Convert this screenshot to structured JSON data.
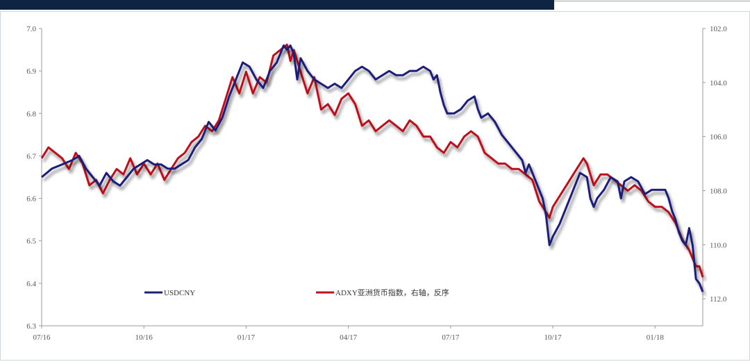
{
  "chart_data": {
    "type": "line",
    "title": "",
    "left_axis": {
      "ylim": [
        6.3,
        7.0
      ],
      "ticks": [
        "7.0",
        "6.9",
        "6.8",
        "6.7",
        "6.6",
        "6.5",
        "6.4",
        "6.3"
      ]
    },
    "right_axis": {
      "ylim": [
        102.0,
        113.0
      ],
      "reversed": true,
      "ticks": [
        "102.0",
        "104.0",
        "106.0",
        "108.0",
        "110.0",
        "112.0"
      ]
    },
    "x_ticks": [
      "07/16",
      "10/16",
      "01/17",
      "04/17",
      "07/17",
      "10/17",
      "01/18"
    ],
    "legend_placement": "bottom-left",
    "series": [
      {
        "name": "USDCNY",
        "axis": "left",
        "color": "#1f1f7a",
        "points": [
          [
            0,
            6.65
          ],
          [
            3,
            6.67
          ],
          [
            6,
            6.68
          ],
          [
            9,
            6.69
          ],
          [
            11,
            6.7
          ],
          [
            13,
            6.67
          ],
          [
            15,
            6.65
          ],
          [
            17,
            6.63
          ],
          [
            19,
            6.66
          ],
          [
            21,
            6.64
          ],
          [
            23,
            6.63
          ],
          [
            25,
            6.65
          ],
          [
            27,
            6.67
          ],
          [
            29,
            6.68
          ],
          [
            31,
            6.69
          ],
          [
            33,
            6.68
          ],
          [
            35,
            6.68
          ],
          [
            37,
            6.67
          ],
          [
            39,
            6.67
          ],
          [
            41,
            6.68
          ],
          [
            43,
            6.69
          ],
          [
            45,
            6.72
          ],
          [
            47,
            6.74
          ],
          [
            49,
            6.78
          ],
          [
            51,
            6.76
          ],
          [
            53,
            6.79
          ],
          [
            55,
            6.84
          ],
          [
            57,
            6.88
          ],
          [
            59,
            6.92
          ],
          [
            61,
            6.91
          ],
          [
            63,
            6.88
          ],
          [
            65,
            6.86
          ],
          [
            67,
            6.9
          ],
          [
            69,
            6.92
          ],
          [
            71,
            6.96
          ],
          [
            72,
            6.95
          ],
          [
            73,
            6.96
          ],
          [
            74,
            6.94
          ],
          [
            75,
            6.88
          ],
          [
            76,
            6.93
          ],
          [
            78,
            6.9
          ],
          [
            80,
            6.88
          ],
          [
            82,
            6.87
          ],
          [
            84,
            6.86
          ],
          [
            86,
            6.87
          ],
          [
            88,
            6.86
          ],
          [
            90,
            6.88
          ],
          [
            92,
            6.9
          ],
          [
            94,
            6.91
          ],
          [
            96,
            6.9
          ],
          [
            98,
            6.88
          ],
          [
            100,
            6.89
          ],
          [
            102,
            6.9
          ],
          [
            104,
            6.89
          ],
          [
            106,
            6.89
          ],
          [
            108,
            6.9
          ],
          [
            110,
            6.9
          ],
          [
            112,
            6.91
          ],
          [
            114,
            6.9
          ],
          [
            115,
            6.88
          ],
          [
            116,
            6.89
          ],
          [
            117,
            6.85
          ],
          [
            118,
            6.82
          ],
          [
            119,
            6.8
          ],
          [
            121,
            6.8
          ],
          [
            123,
            6.81
          ],
          [
            125,
            6.83
          ],
          [
            127,
            6.84
          ],
          [
            128,
            6.81
          ],
          [
            129,
            6.79
          ],
          [
            131,
            6.8
          ],
          [
            133,
            6.78
          ],
          [
            135,
            6.75
          ],
          [
            137,
            6.73
          ],
          [
            139,
            6.71
          ],
          [
            141,
            6.69
          ],
          [
            142,
            6.66
          ],
          [
            143,
            6.68
          ],
          [
            145,
            6.64
          ],
          [
            147,
            6.6
          ],
          [
            148,
            6.56
          ],
          [
            149,
            6.49
          ],
          [
            150,
            6.51
          ],
          [
            152,
            6.54
          ],
          [
            154,
            6.58
          ],
          [
            156,
            6.62
          ],
          [
            158,
            6.66
          ],
          [
            160,
            6.65
          ],
          [
            161,
            6.6
          ],
          [
            162,
            6.58
          ],
          [
            163,
            6.6
          ],
          [
            165,
            6.62
          ],
          [
            167,
            6.65
          ],
          [
            169,
            6.64
          ],
          [
            170,
            6.6
          ],
          [
            171,
            6.64
          ],
          [
            173,
            6.65
          ],
          [
            175,
            6.64
          ],
          [
            177,
            6.61
          ],
          [
            179,
            6.62
          ],
          [
            181,
            6.62
          ],
          [
            183,
            6.62
          ],
          [
            184,
            6.6
          ],
          [
            185,
            6.57
          ],
          [
            186,
            6.55
          ],
          [
            187,
            6.52
          ],
          [
            188,
            6.5
          ],
          [
            189,
            6.49
          ],
          [
            190,
            6.53
          ],
          [
            191,
            6.49
          ],
          [
            192,
            6.41
          ],
          [
            193,
            6.4
          ],
          [
            194,
            6.38
          ]
        ]
      },
      {
        "name": "ADXY亚洲货币指数，右轴，反序",
        "axis": "right",
        "color": "#c0111c",
        "points": [
          [
            0,
            106.8
          ],
          [
            2,
            106.4
          ],
          [
            4,
            106.6
          ],
          [
            6,
            106.8
          ],
          [
            8,
            107.2
          ],
          [
            10,
            106.6
          ],
          [
            12,
            107.0
          ],
          [
            14,
            107.8
          ],
          [
            16,
            107.6
          ],
          [
            18,
            108.1
          ],
          [
            20,
            107.6
          ],
          [
            22,
            107.2
          ],
          [
            24,
            107.4
          ],
          [
            26,
            106.8
          ],
          [
            28,
            107.4
          ],
          [
            30,
            107.0
          ],
          [
            32,
            107.4
          ],
          [
            34,
            107.0
          ],
          [
            36,
            107.6
          ],
          [
            38,
            107.2
          ],
          [
            40,
            106.8
          ],
          [
            42,
            106.6
          ],
          [
            44,
            106.2
          ],
          [
            46,
            106.0
          ],
          [
            48,
            105.6
          ],
          [
            50,
            105.8
          ],
          [
            52,
            105.4
          ],
          [
            54,
            104.6
          ],
          [
            56,
            103.8
          ],
          [
            58,
            104.4
          ],
          [
            60,
            103.6
          ],
          [
            62,
            104.4
          ],
          [
            64,
            103.8
          ],
          [
            66,
            104.0
          ],
          [
            68,
            103.0
          ],
          [
            70,
            102.8
          ],
          [
            72,
            102.6
          ],
          [
            73,
            103.2
          ],
          [
            74,
            102.8
          ],
          [
            76,
            103.6
          ],
          [
            78,
            104.4
          ],
          [
            80,
            103.8
          ],
          [
            82,
            105.0
          ],
          [
            84,
            104.8
          ],
          [
            86,
            105.2
          ],
          [
            88,
            104.6
          ],
          [
            90,
            104.4
          ],
          [
            92,
            104.8
          ],
          [
            94,
            105.6
          ],
          [
            96,
            105.4
          ],
          [
            98,
            105.8
          ],
          [
            100,
            105.6
          ],
          [
            102,
            105.4
          ],
          [
            104,
            105.6
          ],
          [
            106,
            105.8
          ],
          [
            108,
            105.4
          ],
          [
            110,
            105.6
          ],
          [
            112,
            106.0
          ],
          [
            114,
            106.0
          ],
          [
            116,
            106.4
          ],
          [
            118,
            106.6
          ],
          [
            120,
            106.2
          ],
          [
            122,
            106.4
          ],
          [
            124,
            106.0
          ],
          [
            126,
            105.8
          ],
          [
            128,
            106.0
          ],
          [
            130,
            106.6
          ],
          [
            132,
            106.8
          ],
          [
            134,
            107.0
          ],
          [
            136,
            107.0
          ],
          [
            138,
            107.2
          ],
          [
            140,
            107.2
          ],
          [
            142,
            107.4
          ],
          [
            144,
            107.6
          ],
          [
            146,
            108.4
          ],
          [
            148,
            108.8
          ],
          [
            149,
            109.0
          ],
          [
            150,
            108.6
          ],
          [
            152,
            108.2
          ],
          [
            154,
            107.8
          ],
          [
            156,
            107.4
          ],
          [
            158,
            107.0
          ],
          [
            159,
            106.8
          ],
          [
            160,
            107.0
          ],
          [
            162,
            107.8
          ],
          [
            164,
            107.4
          ],
          [
            166,
            107.4
          ],
          [
            168,
            107.6
          ],
          [
            170,
            107.8
          ],
          [
            172,
            108.0
          ],
          [
            174,
            107.8
          ],
          [
            176,
            108.0
          ],
          [
            178,
            108.4
          ],
          [
            180,
            108.6
          ],
          [
            182,
            108.6
          ],
          [
            184,
            108.8
          ],
          [
            186,
            109.2
          ],
          [
            188,
            109.8
          ],
          [
            190,
            110.2
          ],
          [
            192,
            110.8
          ],
          [
            193,
            110.8
          ],
          [
            194,
            111.2
          ]
        ]
      }
    ]
  }
}
